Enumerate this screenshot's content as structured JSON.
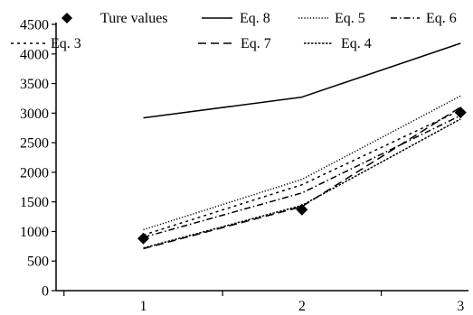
{
  "chart_data": {
    "type": "line",
    "title": "",
    "xlabel": "",
    "ylabel": "",
    "x": [
      1,
      2,
      3
    ],
    "xlim": [
      0.45,
      3.05
    ],
    "ylim": [
      0,
      4500
    ],
    "yticks": [
      0,
      500,
      1000,
      1500,
      2000,
      2500,
      3000,
      3500,
      4000,
      4500
    ],
    "x_tick_labels": [
      "1",
      "2",
      "3"
    ],
    "grid": false,
    "legend_position": "top",
    "series": [
      {
        "name": "Ture values",
        "marker": "diamond",
        "line": "none",
        "values": [
          880,
          1370,
          3010
        ]
      },
      {
        "name": "Eq. 8",
        "marker": "none",
        "line": "solid",
        "values": [
          2920,
          3270,
          4180
        ]
      },
      {
        "name": "Eq. 5",
        "marker": "none",
        "line": "dotted",
        "values": [
          1030,
          1880,
          3290
        ]
      },
      {
        "name": "Eq. 6",
        "marker": "none",
        "line": "dashdot",
        "values": [
          900,
          1650,
          2960
        ]
      },
      {
        "name": "Eq. 3",
        "marker": "none",
        "line": "shortdash",
        "values": [
          940,
          1790,
          3050
        ]
      },
      {
        "name": "Eq. 7",
        "marker": "none",
        "line": "longdash",
        "values": [
          710,
          1420,
          3100
        ]
      },
      {
        "name": "Eq. 4",
        "marker": "none",
        "line": "densedash",
        "values": [
          720,
          1440,
          2900
        ]
      }
    ],
    "colors": {
      "series": "#000000"
    }
  }
}
